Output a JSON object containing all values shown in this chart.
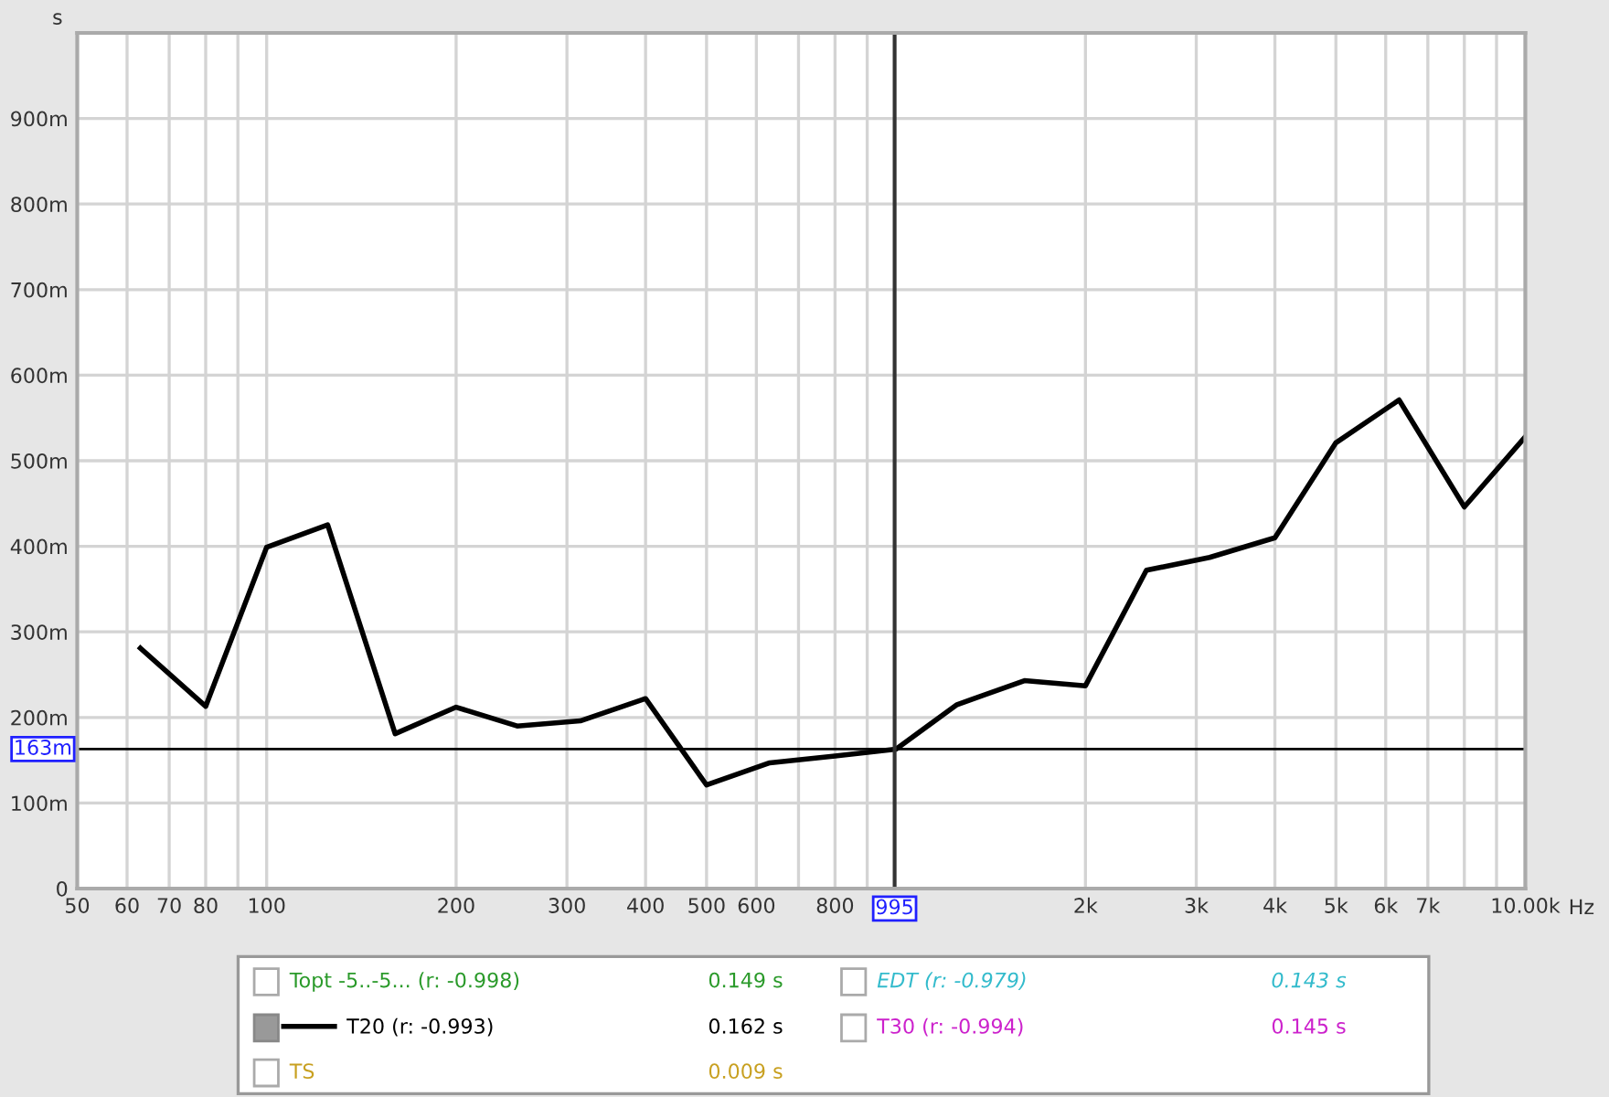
{
  "chart_data": {
    "type": "line",
    "ylabel": "s",
    "xlabel": "Hz",
    "log": "x",
    "x": [
      63,
      80,
      100,
      125,
      160,
      200,
      250,
      315,
      400,
      500,
      630,
      800,
      1000,
      1250,
      1600,
      2000,
      2500,
      3150,
      4000,
      5000,
      6300,
      8000,
      10000
    ],
    "series": [
      {
        "name": "T20 (r: -0.993)",
        "color": "#000000",
        "values": [
          281,
          213,
          399,
          425,
          181,
          212,
          190,
          196,
          222,
          121,
          147,
          155,
          163,
          215,
          243,
          237,
          372,
          387,
          410,
          521,
          571,
          446,
          528
        ]
      }
    ],
    "xlim": [
      50,
      10000
    ],
    "ylim": [
      0,
      1000
    ],
    "xticks": [
      50,
      60,
      70,
      80,
      {
        "value": 90,
        "label": null
      },
      100,
      200,
      300,
      400,
      500,
      600,
      {
        "value": 700,
        "label": null
      },
      800,
      {
        "value": 900,
        "label": null
      },
      {
        "value": 2000,
        "label": "2k"
      },
      {
        "value": 3000,
        "label": "3k"
      },
      {
        "value": 4000,
        "label": "4k"
      },
      {
        "value": 5000,
        "label": "5k"
      },
      {
        "value": 6000,
        "label": "6k"
      },
      {
        "value": 7000,
        "label": "7k"
      },
      {
        "value": 8000,
        "label": null
      },
      {
        "value": 9000,
        "label": null
      },
      {
        "value": 10000,
        "label": "10.00k"
      }
    ],
    "yticks": [
      0,
      {
        "value": 100,
        "label": "100m"
      },
      {
        "value": 200,
        "label": "200m"
      },
      {
        "value": 300,
        "label": "300m"
      },
      {
        "value": 400,
        "label": "400m"
      },
      {
        "value": 500,
        "label": "500m"
      },
      {
        "value": 600,
        "label": "600m"
      },
      {
        "value": 700,
        "label": "700m"
      },
      {
        "value": 800,
        "label": "800m"
      },
      {
        "value": 900,
        "label": "900m"
      },
      {
        "value": 1000,
        "label": null
      }
    ],
    "ref_lines": [
      {
        "axis": "y",
        "value": 163,
        "label": "163m",
        "color": "#000000"
      },
      {
        "axis": "x",
        "value": 995,
        "label": "995",
        "color": "#333333"
      }
    ],
    "grid": true,
    "legend": "bottom",
    "line_style": "solid",
    "marker": "none",
    "annotations": [
      "Topt -5..-5... (r: -0.998)",
      "0.149 s",
      "EDT (r: -0.979)",
      "0.143 s",
      "0.162 s",
      "T30 (r: -0.994)",
      "0.145 s",
      "TS",
      "0.009 s"
    ]
  }
}
